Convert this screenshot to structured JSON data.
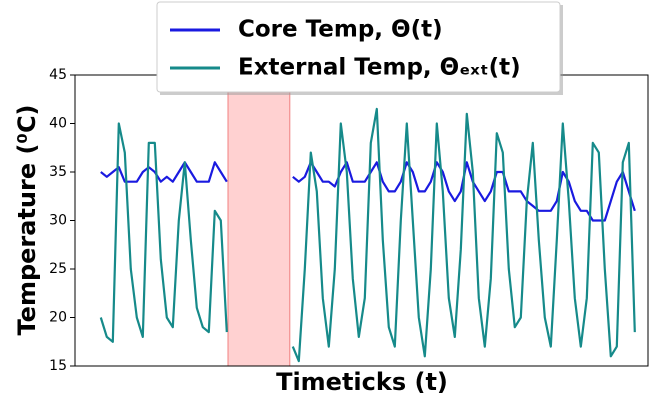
{
  "chart_data": {
    "type": "line",
    "x_label": "Timeticks (t)",
    "y_label": "Temperature (⁰C)",
    "x": [
      0,
      1,
      2,
      3,
      4,
      5,
      6,
      7,
      8,
      9,
      10,
      11,
      12,
      13,
      14,
      15,
      16,
      17,
      18,
      19,
      20,
      21,
      22,
      23,
      24,
      25,
      26,
      27,
      28,
      29,
      30,
      31,
      32,
      33,
      34,
      35,
      36,
      37,
      38,
      39,
      40,
      41,
      42,
      43,
      44,
      45,
      46,
      47,
      48,
      49,
      50,
      51,
      52,
      53,
      54,
      55,
      56,
      57,
      58,
      59,
      60,
      61,
      62,
      63,
      64,
      65,
      66,
      67,
      68,
      69,
      70,
      71,
      72,
      73,
      74,
      75,
      76,
      77,
      78,
      79,
      80,
      81,
      82,
      83,
      84,
      85,
      86,
      87,
      88,
      89
    ],
    "series": [
      {
        "name": "Core Temp, Θ(t)",
        "color": "#1a1ae0",
        "values": [
          35,
          34.5,
          35,
          35.5,
          34,
          34,
          34,
          35,
          35.5,
          35,
          34,
          34.5,
          34,
          35,
          36,
          35,
          34,
          34,
          34,
          36,
          35,
          34,
          null,
          null,
          null,
          null,
          null,
          null,
          null,
          null,
          null,
          null,
          34.5,
          34,
          34.5,
          36,
          35,
          34,
          34,
          33.5,
          35,
          36,
          34,
          34,
          34,
          35,
          36,
          34,
          33,
          33,
          34,
          36,
          35,
          33,
          33,
          34,
          36,
          35,
          33,
          32,
          33,
          36,
          34,
          33,
          32,
          33,
          35,
          35,
          33,
          33,
          33,
          32,
          31.5,
          31,
          31,
          31,
          32,
          35,
          34,
          32,
          31,
          31,
          30,
          30,
          30,
          32,
          34,
          35,
          33,
          31
        ]
      },
      {
        "name": "External Temp, Θₑₓₜ(t)",
        "color": "#168a8a",
        "values": [
          20,
          18,
          17.5,
          40,
          37,
          25,
          20,
          18,
          38,
          38,
          26,
          20,
          19,
          30,
          36,
          28,
          21,
          19,
          18.5,
          31,
          30,
          18.5,
          null,
          null,
          null,
          null,
          null,
          null,
          null,
          null,
          null,
          null,
          17,
          15.5,
          25,
          37,
          33,
          22,
          17,
          25,
          40,
          35,
          24,
          18,
          22,
          38,
          41.5,
          28,
          19,
          17,
          30,
          40,
          30,
          20,
          16,
          25,
          40,
          33,
          22,
          18,
          27,
          41,
          35,
          22,
          17,
          24,
          39,
          37,
          25,
          19,
          20,
          32,
          38,
          28,
          20,
          17,
          28,
          40,
          32,
          22,
          17,
          22,
          38,
          37,
          25,
          16,
          17,
          36,
          38,
          18.5
        ]
      }
    ],
    "shaded_span": [
      21.2,
      31.5
    ],
    "shaded_color": "#ffb3b3",
    "xlim": [
      -4.3,
      91.2
    ],
    "ylim": [
      15,
      45
    ],
    "yticks": [
      15,
      20,
      25,
      30,
      35,
      40,
      45
    ]
  }
}
